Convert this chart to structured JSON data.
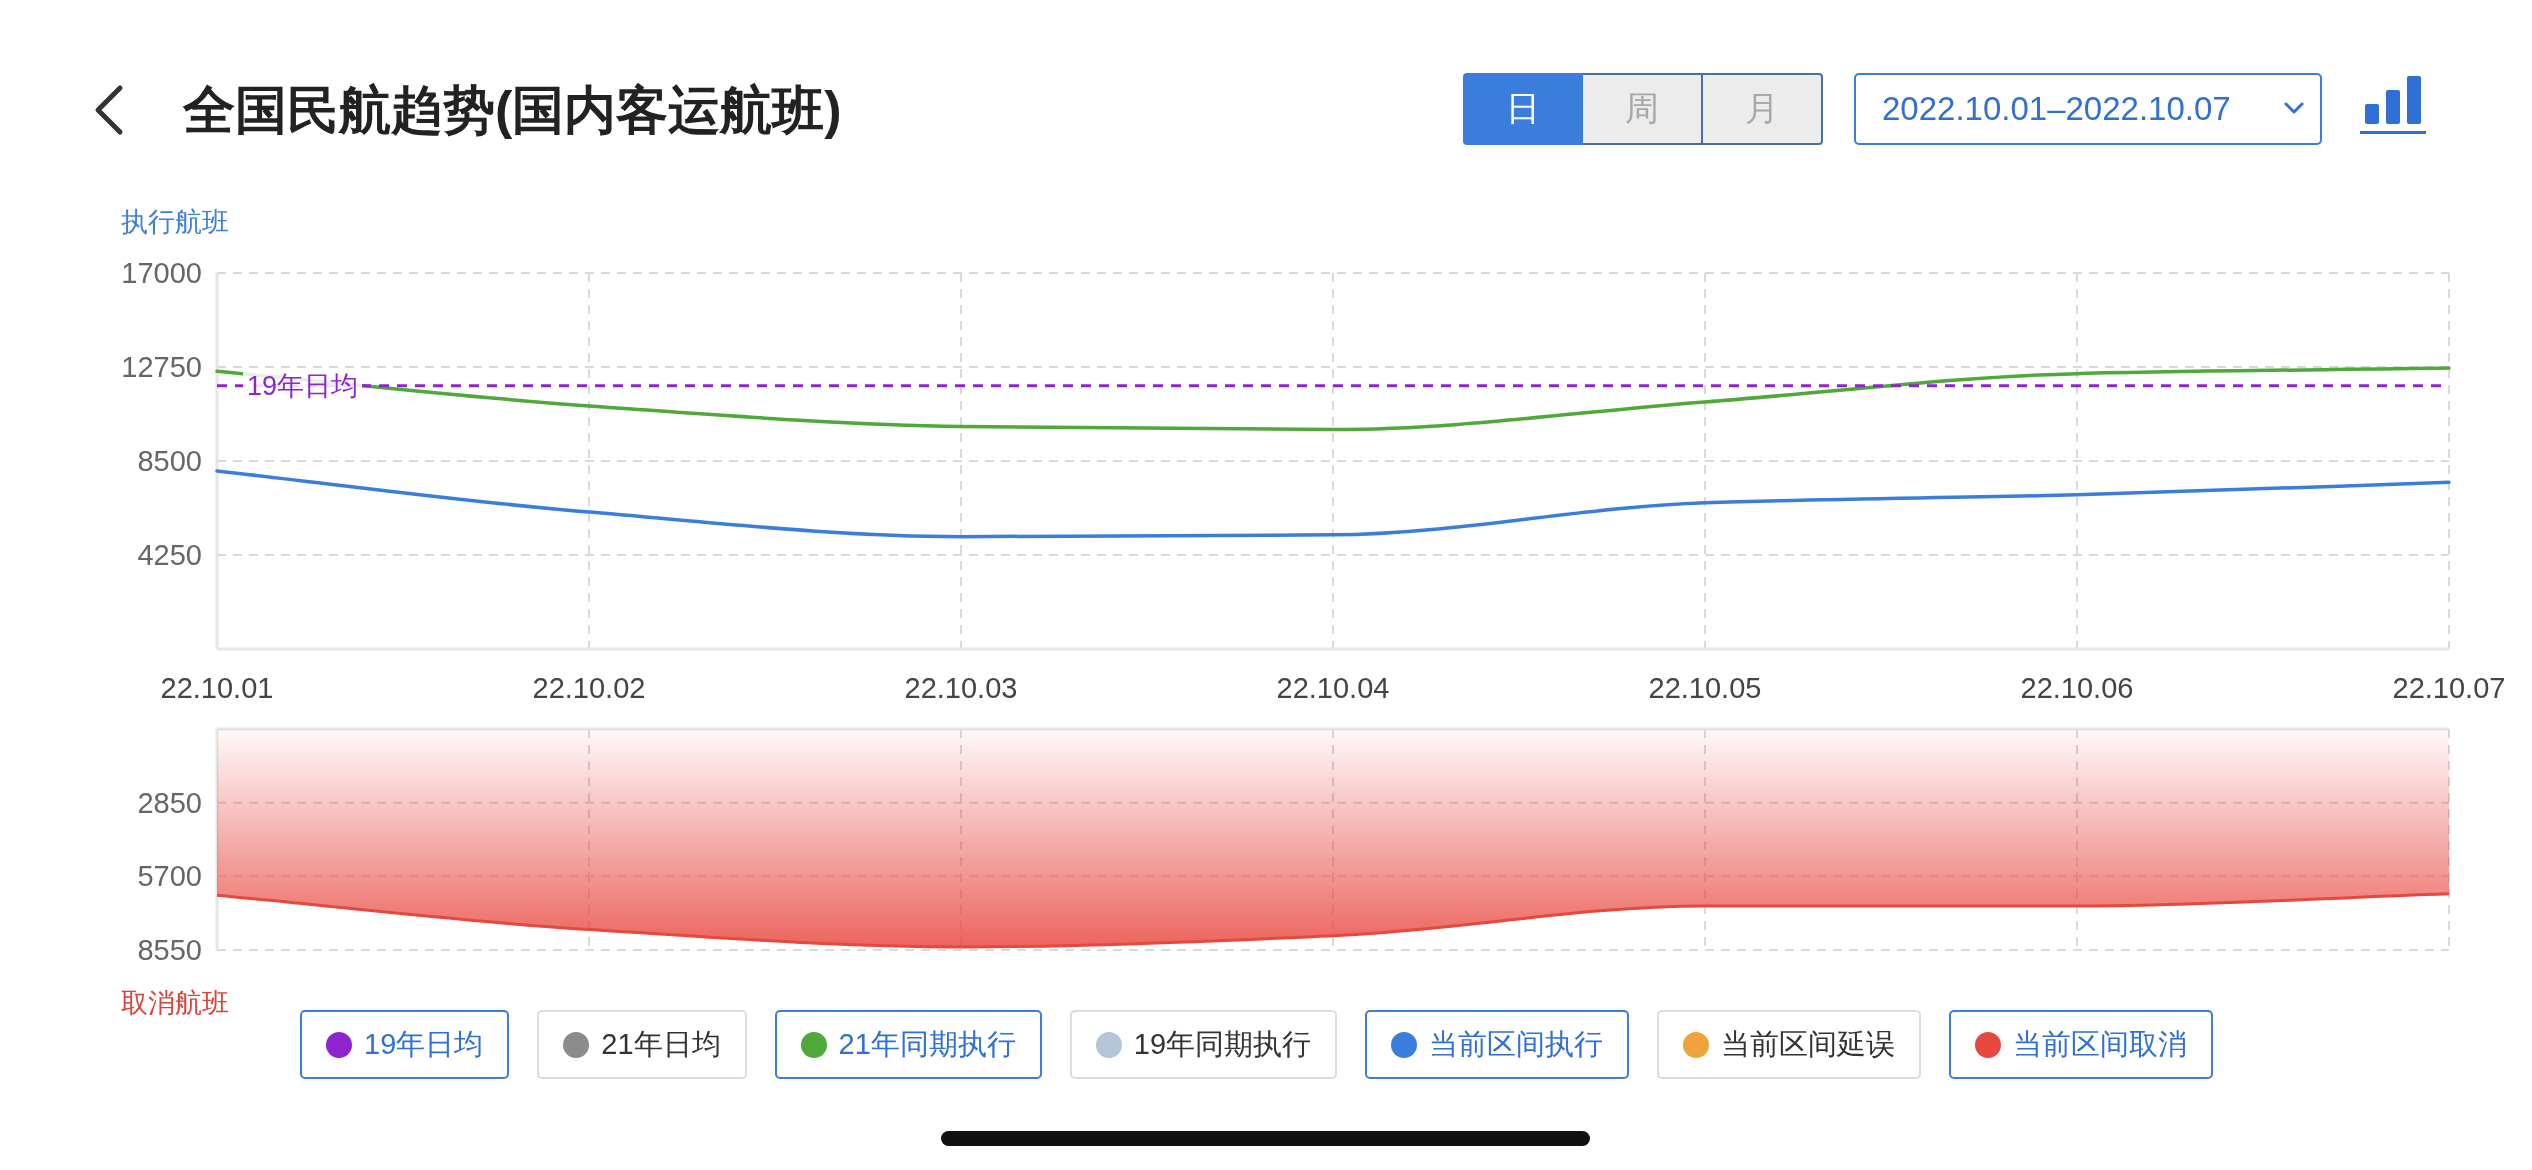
{
  "chart_data": [
    {
      "type": "line",
      "title": "全国民航趋势(国内客运航班)",
      "ylabel": "执行航班",
      "annotations": [
        "日",
        "周",
        "月",
        "2022.10.01–2022.10.07"
      ],
      "categories": [
        "22.10.01",
        "22.10.02",
        "22.10.03",
        "22.10.04",
        "22.10.05",
        "22.10.06",
        "22.10.07"
      ],
      "series": [
        {
          "name": "21年日均",
          "color": "#8c8c8c",
          "values": [
            null,
            null,
            null,
            null,
            null,
            null,
            null
          ]
        },
        {
          "name": "21年同期执行",
          "color": "#4ea83a",
          "values": [
            12560,
            10990,
            10060,
            9920,
            11170,
            12450,
            12700
          ]
        },
        {
          "name": "19年同期执行",
          "color": "#b3c5da",
          "values": [
            null,
            null,
            null,
            null,
            null,
            null,
            null
          ]
        },
        {
          "name": "当前区间执行",
          "color": "#3b7ddd",
          "values": [
            8050,
            6190,
            5080,
            5160,
            6610,
            6970,
            7540
          ]
        },
        {
          "name": "当前区间延误",
          "color": "#f0a23c",
          "values": [
            null,
            null,
            null,
            null,
            null,
            null,
            null
          ]
        }
      ],
      "ref_lines": [
        {
          "axis": "y",
          "value": 11900,
          "label": "19年日均",
          "color": "#8e24d0",
          "line_style": "dashed"
        }
      ],
      "ylim": [
        0,
        17000
      ],
      "yticks": [
        4250,
        8500,
        12750,
        17000
      ],
      "grid": true,
      "legend": "bottom"
    },
    {
      "type": "area",
      "ylabel": "取消航班",
      "categories": [
        "22.10.01",
        "22.10.02",
        "22.10.03",
        "22.10.04",
        "22.10.05",
        "22.10.06",
        "22.10.07"
      ],
      "series": [
        {
          "name": "当前区间取消",
          "color": "#e8473e",
          "values": [
            6430,
            7760,
            8430,
            8000,
            6850,
            6850,
            6370
          ]
        }
      ],
      "ylim": [
        8550,
        0
      ],
      "yticks": [
        2850,
        5700,
        8550
      ],
      "grid": true,
      "tick_labels": "y",
      "legend": "bottom"
    }
  ]
}
